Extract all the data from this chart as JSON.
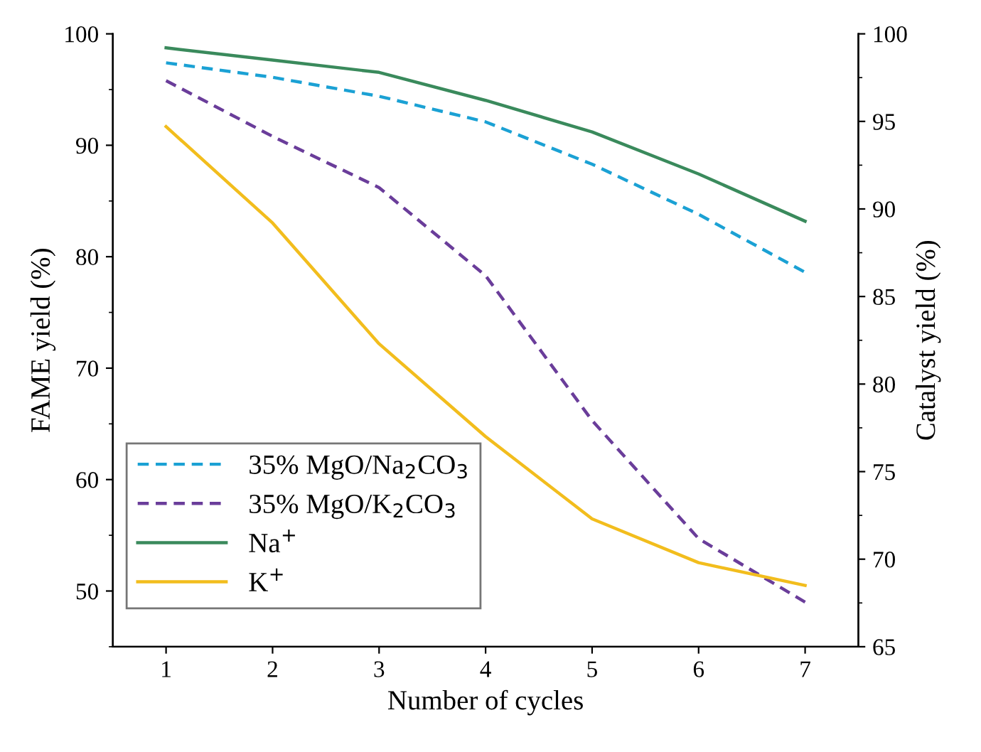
{
  "chart_data": {
    "type": "line",
    "xlabel": "Number of cycles",
    "ylabel": "FAME yield (%)",
    "y2label": "Catalyst yield (%)",
    "x": [
      1,
      2,
      3,
      4,
      5,
      6,
      7
    ],
    "xlim": [
      0.5,
      7.5
    ],
    "xticks": [
      1,
      2,
      3,
      4,
      5,
      6,
      7
    ],
    "ylim": [
      45,
      100
    ],
    "yticks": [
      50,
      60,
      70,
      80,
      90,
      100
    ],
    "y2lim": [
      65,
      100
    ],
    "y2ticks": [
      65,
      70,
      75,
      80,
      85,
      90,
      95,
      100
    ],
    "grid": false,
    "legend": "bottom left",
    "marker": "none",
    "series": [
      {
        "name": "35% MgO/Na$_{2}$CO$_{3}$",
        "color": "#1ba1d4",
        "line_style": "dashed",
        "values": [
          97.4,
          96.1,
          94.4,
          92.1,
          88.3,
          83.8,
          78.6
        ]
      },
      {
        "name": "35% MgO/K$_{2}$CO$_{3}$",
        "color": "#6a3d9a",
        "line_style": "dashed",
        "values": [
          95.8,
          90.8,
          86.2,
          78.3,
          65.3,
          54.7,
          49.0
        ]
      },
      {
        "name": "Na$^{+}$",
        "color": "#3a8a5c",
        "line_style": "solid",
        "axis": "y2",
        "values": [
          99.2,
          98.5,
          97.8,
          96.2,
          94.4,
          92.0,
          89.3
        ]
      },
      {
        "name": "K$^{+}$",
        "color": "#f2bd1d",
        "line_style": "solid",
        "axis": "y2",
        "values": [
          94.7,
          89.2,
          82.3,
          77.0,
          72.3,
          69.8,
          68.5
        ]
      }
    ]
  }
}
